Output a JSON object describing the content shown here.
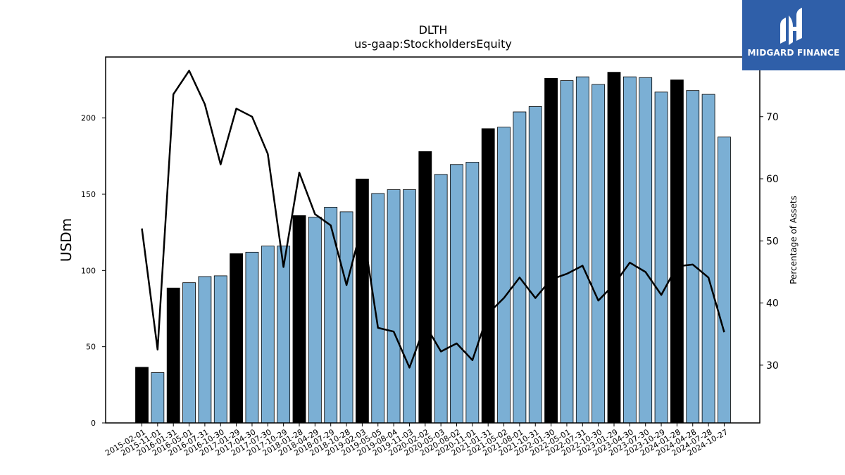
{
  "brand": {
    "name": "MIDGARD FINANCE",
    "colors": {
      "background": "#2f5fa9",
      "text": "#ffffff"
    },
    "logo_icon": "midgard-mark-icon"
  },
  "chart_data": {
    "type": "bar",
    "title": "DLTH",
    "subtitle": "us-gaap:StockholdersEquity",
    "ylabel": "USDm",
    "y2label": "Percentage of Assets",
    "ylim": [
      0,
      240
    ],
    "y2lim": [
      20.7,
      79.6
    ],
    "yticks": [
      0,
      50,
      100,
      150,
      200
    ],
    "y2ticks": [
      30,
      40,
      50,
      60,
      70
    ],
    "grid": false,
    "colors": {
      "bar_default": "#7bafd4",
      "bar_highlight": "#000000",
      "line": "#000000"
    },
    "categories": [
      "2015-02-01",
      "2015-11-01",
      "2016-01-31",
      "2016-05-01",
      "2016-07-31",
      "2016-10-30",
      "2017-01-29",
      "2017-04-30",
      "2017-07-30",
      "2017-10-29",
      "2018-01-28",
      "2018-04-29",
      "2018-07-29",
      "2018-10-28",
      "2019-02-03",
      "2019-05-05",
      "2019-08-04",
      "2019-11-03",
      "2020-02-02",
      "2020-05-03",
      "2020-08-02",
      "2020-11-01",
      "2021-01-31",
      "2021-05-02",
      "2021-08-01",
      "2021-10-31",
      "2022-01-30",
      "2022-05-01",
      "2022-07-31",
      "2022-10-30",
      "2023-01-29",
      "2023-04-30",
      "2023-07-30",
      "2023-10-29",
      "2024-01-28",
      "2024-04-28",
      "2024-07-28",
      "2024-10-27"
    ],
    "series": [
      {
        "kind": "bar",
        "axis": "left",
        "values": [
          36.5,
          33,
          88.5,
          92,
          96,
          96.5,
          111,
          112,
          116,
          116,
          136,
          135,
          141.5,
          138.5,
          160,
          150.5,
          153,
          153,
          178,
          163,
          169.5,
          171,
          193,
          194,
          204,
          207.5,
          226,
          224.5,
          227,
          222,
          230,
          227,
          226.5,
          217,
          225,
          218,
          215.5,
          187.5
        ],
        "highlighted": [
          true,
          false,
          true,
          false,
          false,
          false,
          true,
          false,
          false,
          false,
          true,
          false,
          false,
          false,
          true,
          false,
          false,
          false,
          true,
          false,
          false,
          false,
          true,
          false,
          false,
          false,
          true,
          false,
          false,
          false,
          true,
          false,
          false,
          false,
          true,
          false,
          false,
          false
        ]
      },
      {
        "kind": "line",
        "axis": "right",
        "values": [
          52,
          32.5,
          73.6,
          77.4,
          72,
          62.3,
          71.3,
          70,
          64,
          45.8,
          61,
          54.3,
          52.5,
          42.9,
          52.6,
          36,
          35.4,
          29.6,
          36.5,
          32.2,
          33.5,
          30.8,
          38.3,
          40.8,
          44.1,
          40.8,
          43.8,
          44.7,
          46,
          40.4,
          43,
          46.5,
          45,
          41.3,
          45.9,
          46.2,
          44.1,
          35.3
        ]
      }
    ]
  }
}
